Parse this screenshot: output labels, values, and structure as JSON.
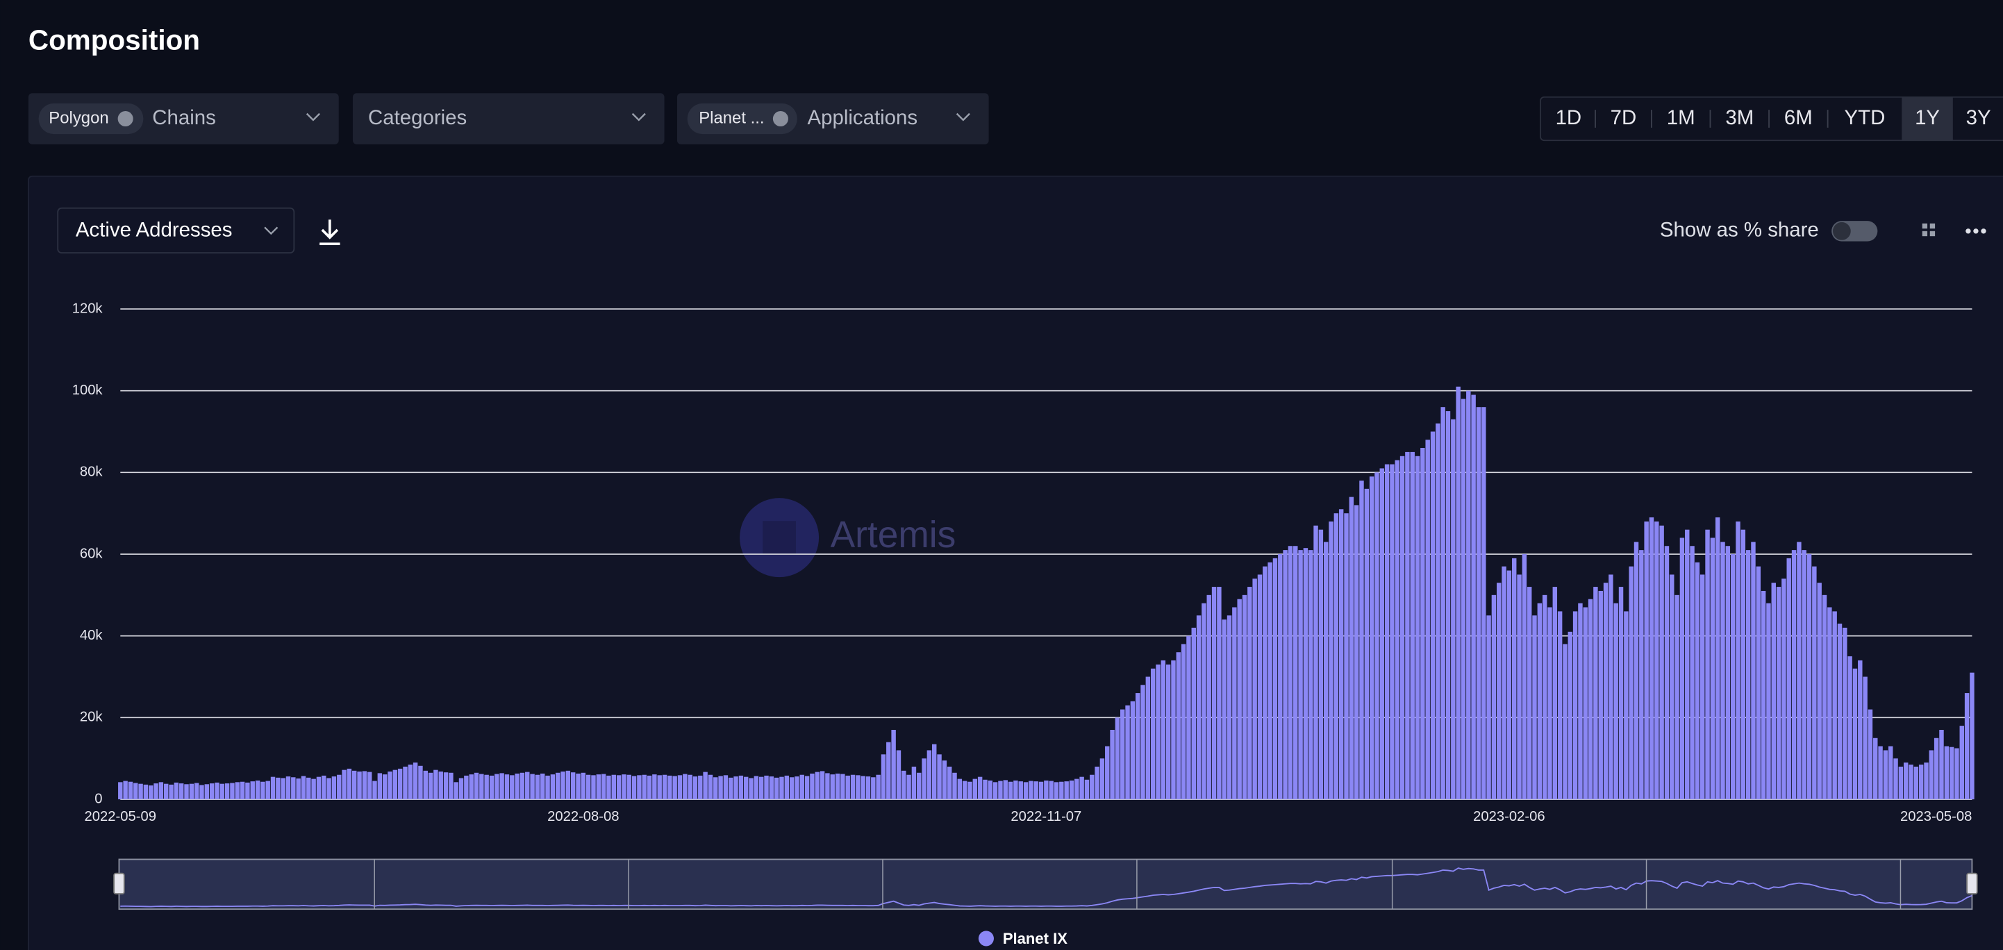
{
  "ui": {
    "title": "Composition",
    "filters": [
      {
        "chip": "Polygon",
        "label": "Chains"
      },
      {
        "label": "Categories"
      },
      {
        "chip": "Planet ...",
        "label": "Applications"
      }
    ],
    "ranges": [
      "1D",
      "7D",
      "1M",
      "3M",
      "6M",
      "YTD",
      "1Y",
      "3Y"
    ],
    "selected_range": "1Y",
    "metric": "Active Addresses",
    "share_toggle": "Show as % share",
    "watermark": "Artemis"
  },
  "chart_data": {
    "type": "bar",
    "categories": [
      "2022-05-09",
      null,
      null,
      null,
      null,
      null,
      null,
      null,
      null,
      null,
      null,
      null,
      null,
      null,
      null,
      null,
      null,
      null,
      null,
      null,
      null,
      null,
      null,
      null,
      null,
      null,
      null,
      null,
      null,
      null,
      null,
      null,
      null,
      null,
      null,
      null,
      null,
      null,
      null,
      null,
      null,
      null,
      null,
      null,
      null,
      null,
      null,
      null,
      null,
      null,
      null,
      null,
      null,
      null,
      null,
      null,
      null,
      null,
      null,
      null,
      null,
      null,
      null,
      null,
      null,
      null,
      null,
      null,
      null,
      null,
      null,
      null,
      null,
      null,
      null,
      null,
      null,
      null,
      null,
      null,
      null,
      null,
      null,
      null,
      null,
      null,
      null,
      null,
      null,
      null,
      null,
      "2022-08-08",
      null,
      null,
      null,
      null,
      null,
      null,
      null,
      null,
      null,
      null,
      null,
      null,
      null,
      null,
      null,
      null,
      null,
      null,
      null,
      null,
      null,
      null,
      null,
      null,
      null,
      null,
      null,
      null,
      null,
      null,
      null,
      null,
      null,
      null,
      null,
      null,
      null,
      null,
      null,
      null,
      null,
      null,
      null,
      null,
      null,
      null,
      null,
      null,
      null,
      null,
      null,
      null,
      null,
      null,
      null,
      null,
      null,
      null,
      null,
      null,
      null,
      null,
      null,
      null,
      null,
      null,
      null,
      null,
      null,
      null,
      null,
      null,
      null,
      null,
      null,
      null,
      null,
      null,
      null,
      null,
      null,
      null,
      null,
      null,
      null,
      null,
      null,
      null,
      null,
      null,
      "2022-11-07",
      null,
      null,
      null,
      null,
      null,
      null,
      null,
      null,
      null,
      null,
      null,
      null,
      null,
      null,
      null,
      null,
      null,
      null,
      null,
      null,
      null,
      null,
      null,
      null,
      null,
      null,
      null,
      null,
      null,
      null,
      null,
      null,
      null,
      null,
      null,
      null,
      null,
      null,
      null,
      null,
      null,
      null,
      null,
      null,
      null,
      null,
      null,
      null,
      null,
      null,
      null,
      null,
      null,
      null,
      null,
      null,
      null,
      null,
      null,
      null,
      null,
      null,
      null,
      null,
      null,
      null,
      null,
      null,
      null,
      null,
      null,
      null,
      null,
      null,
      null,
      null,
      null,
      null,
      null,
      null,
      null,
      null,
      null,
      null,
      null,
      null,
      null,
      null,
      null,
      null,
      "2023-02-06",
      null,
      null,
      null,
      null,
      null,
      null,
      null,
      null,
      null,
      null,
      null,
      null,
      null,
      null,
      null,
      null,
      null,
      null,
      null,
      null,
      null,
      null,
      null,
      null,
      null,
      null,
      null,
      null,
      null,
      null,
      null,
      null,
      null,
      null,
      null,
      null,
      null,
      null,
      null,
      null,
      null,
      null,
      null,
      null,
      null,
      null,
      null,
      null,
      null,
      null,
      null,
      null,
      null,
      null,
      null,
      null,
      null,
      null,
      null,
      null,
      null,
      null,
      null,
      null,
      null,
      null,
      null,
      null,
      null,
      null,
      null,
      null,
      null,
      null,
      null,
      null,
      null,
      null,
      null,
      null,
      null,
      null,
      null,
      null,
      null,
      null,
      null,
      null,
      null,
      null,
      "2023-05-08"
    ],
    "series": [
      {
        "name": "Planet IX",
        "color": "#8b87f5",
        "values": [
          4200,
          4500,
          4300,
          4000,
          3800,
          3600,
          3400,
          3900,
          4200,
          3800,
          3600,
          4100,
          3900,
          3700,
          3800,
          4000,
          3500,
          3700,
          3900,
          4100,
          3800,
          3900,
          4000,
          4200,
          4300,
          4100,
          4400,
          4600,
          4300,
          4500,
          5500,
          5300,
          5200,
          5600,
          5400,
          5100,
          5700,
          5300,
          5000,
          5500,
          5800,
          5200,
          5600,
          6000,
          7200,
          7500,
          7000,
          6800,
          6900,
          6700,
          4500,
          6400,
          6100,
          6800,
          7200,
          7500,
          8000,
          8500,
          9000,
          8200,
          7000,
          6500,
          7200,
          6800,
          6600,
          6500,
          4200,
          5200,
          5800,
          6100,
          6500,
          6200,
          6000,
          5800,
          6200,
          6400,
          6100,
          5900,
          6300,
          6500,
          6700,
          6200,
          6000,
          6300,
          5800,
          6100,
          6500,
          6800,
          7000,
          6600,
          6300,
          6500,
          6000,
          5900,
          6100,
          6200,
          5800,
          6000,
          5900,
          6100,
          6000,
          5700,
          5900,
          6000,
          5800,
          6100,
          5900,
          6000,
          5800,
          5700,
          5900,
          6200,
          6000,
          5600,
          5800,
          6700,
          6000,
          5400,
          5700,
          5900,
          5300,
          5600,
          5800,
          5500,
          5200,
          5700,
          5500,
          5800,
          5600,
          5300,
          5500,
          5800,
          5400,
          5600,
          6000,
          5700,
          6300,
          6700,
          6900,
          6400,
          6100,
          6300,
          6200,
          5800,
          6000,
          5900,
          5700,
          5600,
          5400,
          6000,
          11000,
          14000,
          17000,
          12000,
          7000,
          6000,
          8000,
          6500,
          10000,
          12000,
          13500,
          11000,
          9500,
          8000,
          6500,
          5000,
          4500,
          4300,
          5000,
          5500,
          4800,
          4600,
          4200,
          4500,
          4700,
          4300,
          4600,
          4400,
          4200,
          4500,
          4400,
          4300,
          4600,
          4500,
          4200,
          4300,
          4400,
          4600,
          5000,
          5500,
          4800,
          6000,
          8000,
          10000,
          13000,
          17000,
          20000,
          22000,
          23000,
          24000,
          26000,
          28000,
          30000,
          32000,
          33000,
          34000,
          33000,
          34000,
          36000,
          38000,
          40000,
          42000,
          45000,
          48000,
          50000,
          52000,
          52000,
          44000,
          45000,
          47000,
          49000,
          50000,
          52000,
          54000,
          55000,
          57000,
          58000,
          59000,
          60000,
          61000,
          62000,
          62000,
          61000,
          61500,
          61000,
          67000,
          66000,
          63000,
          68000,
          70000,
          71000,
          70000,
          74000,
          72000,
          78000,
          76000,
          79000,
          80000,
          81000,
          82000,
          82000,
          83000,
          84000,
          85000,
          85000,
          84000,
          86000,
          88000,
          90000,
          92000,
          96000,
          95000,
          93000,
          101000,
          98000,
          100000,
          99000,
          96000,
          96000,
          45000,
          50000,
          53000,
          57000,
          56000,
          59000,
          55000,
          60000,
          52000,
          45000,
          48000,
          50000,
          47000,
          52000,
          46000,
          38000,
          41000,
          46000,
          48000,
          47000,
          49000,
          52000,
          51000,
          53000,
          55000,
          48000,
          52000,
          46000,
          57000,
          63000,
          61000,
          68000,
          69000,
          68000,
          67000,
          62000,
          55000,
          50000,
          64000,
          66000,
          62000,
          58000,
          55000,
          66000,
          64000,
          69000,
          63000,
          62000,
          60000,
          68000,
          66000,
          61000,
          63000,
          57000,
          51000,
          48000,
          53000,
          52000,
          54000,
          59000,
          61000,
          63000,
          61000,
          60000,
          57000,
          53000,
          50000,
          47000,
          46000,
          43000,
          42000,
          35000,
          32000,
          34000,
          30000,
          22000,
          15000,
          13000,
          12000,
          13000,
          10000,
          8000,
          9000,
          8500,
          8000,
          8500,
          9000,
          12000,
          15000,
          17000,
          13000,
          12800,
          12500,
          18000,
          26000,
          31000
        ]
      }
    ],
    "ylim": [
      0,
      120000
    ],
    "yticks": [
      0,
      {
        "value": 20000,
        "label": "20k"
      },
      {
        "value": 40000,
        "label": "40k"
      },
      {
        "value": 60000,
        "label": "60k"
      },
      {
        "value": 80000,
        "label": "80k"
      },
      {
        "value": 100000,
        "label": "100k"
      },
      {
        "value": 120000,
        "label": "120k"
      }
    ],
    "grid": true,
    "legend": "bottom"
  }
}
